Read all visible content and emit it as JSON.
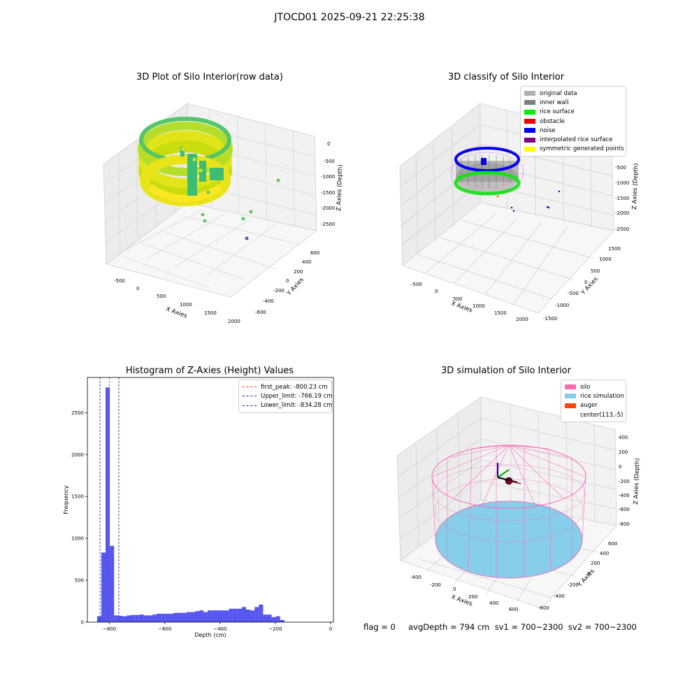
{
  "suptitle": "JTOCD01 2025-09-21 22:25:38",
  "status_line": "flag = 0     avgDepth = 794 cm  sv1 = 700~2300  sv2 = 700~2300",
  "colors": {
    "hist_bar": "#4444ee",
    "first_peak": "#ff2222",
    "limit": "#1a1a99",
    "silo": "#ff69b4",
    "rice": "#87ceeb",
    "auger": "#ff4500"
  },
  "chart_data": [
    {
      "type": "scatter",
      "subtype": "3d",
      "title": "3D Plot of Silo Interior(row data)",
      "xlabel": "X Axies",
      "ylabel": "Y Axies",
      "zlabel": "Z Axies (Depth)",
      "x_ticks": [
        "-500",
        "0",
        "500",
        "1000",
        "1500",
        "2000"
      ],
      "y_ticks": [
        "-600",
        "-400",
        "-200",
        "0",
        "200",
        "400",
        "600"
      ],
      "z_ticks": [
        "0",
        "-500",
        "-1000",
        "-1500",
        "-2000",
        "-2500"
      ],
      "colormap": "viridis"
    },
    {
      "type": "scatter",
      "subtype": "3d",
      "title": "3D classify of Silo Interior",
      "xlabel": "X Axies",
      "ylabel": "Y Axies",
      "zlabel": "Z Axies (Depth)",
      "x_ticks": [
        "-500",
        "0",
        "500",
        "1000",
        "1500",
        "2000"
      ],
      "y_ticks": [
        "-1500",
        "-1000",
        "-500",
        "0",
        "500",
        "1000",
        "1500"
      ],
      "z_ticks": [
        "-500",
        "-1000",
        "-1500",
        "-2000",
        "-2500"
      ],
      "legend_position": "top-right",
      "legend": [
        {
          "label": "original data",
          "color": "#b0b0b0"
        },
        {
          "label": "inner wall",
          "color": "#808080"
        },
        {
          "label": "rice surface",
          "color": "#00ee00"
        },
        {
          "label": "obstacle",
          "color": "#ee0000"
        },
        {
          "label": "noise",
          "color": "#0000ee"
        },
        {
          "label": "interpolated rice surface",
          "color": "#800080"
        },
        {
          "label": "symmetric generated points",
          "color": "#ffff00"
        }
      ]
    },
    {
      "type": "bar",
      "title": "Histogram of Z-Axies (Height) Values",
      "xlabel": "Depth (cm)",
      "ylabel": "Frequency",
      "xlim": [
        -880,
        10
      ],
      "ylim": [
        0,
        2920
      ],
      "x_ticks": [
        -800,
        -600,
        -400,
        -200,
        0
      ],
      "y_ticks": [
        0,
        500,
        1000,
        1500,
        2000,
        2500
      ],
      "bin_start": -845,
      "bin_width": 15.4,
      "values": [
        70,
        830,
        2800,
        910,
        80,
        75,
        70,
        80,
        85,
        85,
        90,
        80,
        80,
        90,
        100,
        100,
        100,
        100,
        110,
        110,
        110,
        120,
        120,
        130,
        140,
        120,
        140,
        140,
        140,
        140,
        140,
        160,
        160,
        160,
        180,
        150,
        140,
        180,
        210,
        90,
        90,
        60,
        70,
        25
      ],
      "legend_position": "top-right",
      "vlines": [
        {
          "label": "first_peak: -800.23 cm",
          "x": -800.23,
          "color": "#ff2222"
        },
        {
          "label": "Upper_limit: -766.19 cm",
          "x": -766.19,
          "color": "#1a1a99"
        },
        {
          "label": "Lower_limit: -834.28 cm",
          "x": -834.28,
          "color": "#1a1a99"
        }
      ]
    },
    {
      "type": "scatter",
      "subtype": "3d",
      "title": "3D simulation of Silo Interior",
      "xlabel": "X Axies",
      "ylabel": "Y Axies",
      "zlabel": "Z Axies (Depth)",
      "x_ticks": [
        "-400",
        "-200",
        "0",
        "200",
        "400",
        "600"
      ],
      "y_ticks": [
        "-600",
        "-400",
        "-200",
        "0",
        "200",
        "400",
        "600"
      ],
      "z_ticks": [
        "400",
        "200",
        "0",
        "-200",
        "-400",
        "-600",
        "-800"
      ],
      "legend_position": "top-right",
      "legend": [
        {
          "label": "silo",
          "color": "#ff69b4"
        },
        {
          "label": "rice simulation",
          "color": "#87ceeb"
        },
        {
          "label": "auger",
          "color": "#ff4500"
        },
        {
          "label": "center(113,-5)",
          "color": "#ffffff"
        }
      ]
    }
  ]
}
